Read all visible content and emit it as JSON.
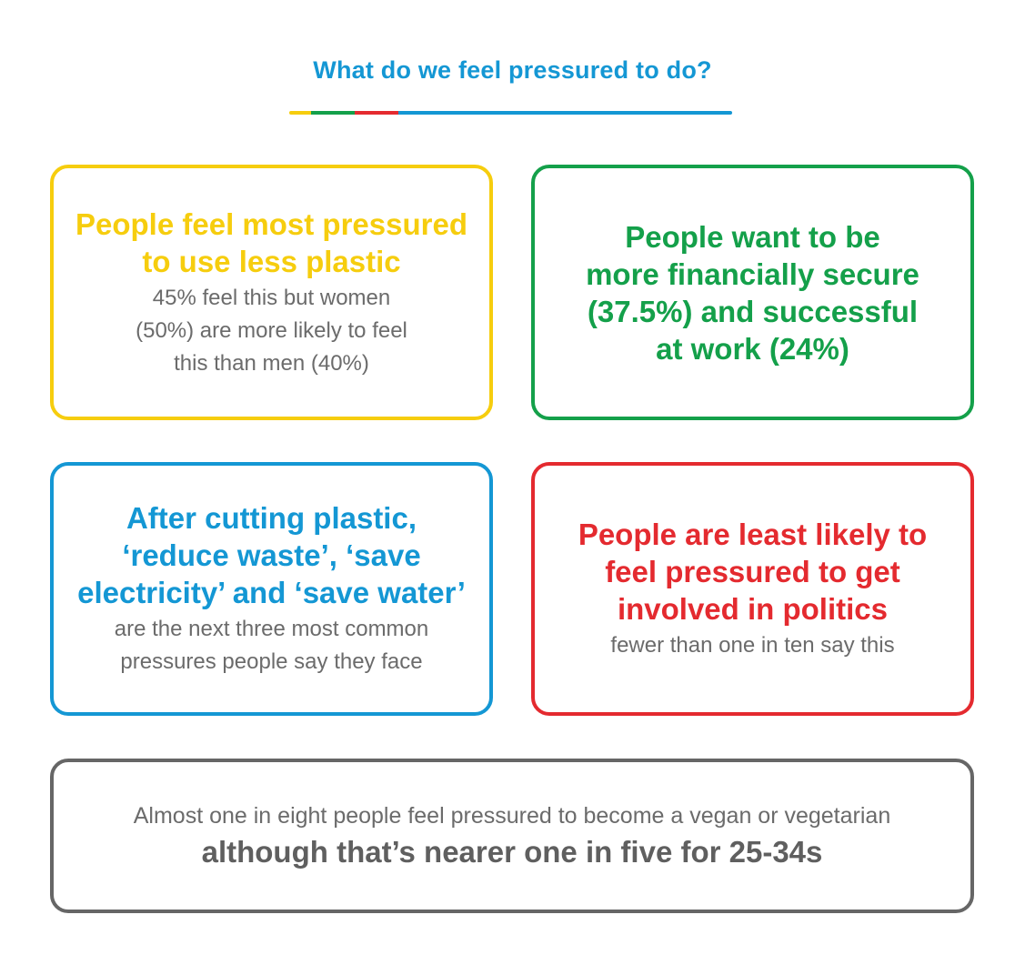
{
  "title": "What do we feel pressured to do?",
  "colors": {
    "title": "#1497d4",
    "yellow": "#f6cd0e",
    "green": "#14a04a",
    "red": "#e42a2f",
    "blue": "#1497d4",
    "grey": "#666666",
    "body_text": "#6b6b6b"
  },
  "cards": [
    {
      "headline": "People feel most pressured\nto use less plastic",
      "body": "45% feel this but women\n(50%) are more likely to feel\nthis than men (40%)"
    },
    {
      "headline": "People want to be\nmore financially secure\n(37.5%) and successful\nat work (24%)",
      "body": ""
    },
    {
      "headline": "After cutting plastic,\n‘reduce waste’, ‘save\nelectricity’ and ‘save water’",
      "body": "are the next three most common\npressures people say they face"
    },
    {
      "headline": "People are least likely to\nfeel pressured to get\ninvolved in politics",
      "body": "fewer than one in ten say this"
    },
    {
      "body": "Almost one in eight people feel pressured to become a vegan or vegetarian",
      "headline": "although that’s nearer one in five for 25-34s"
    }
  ]
}
